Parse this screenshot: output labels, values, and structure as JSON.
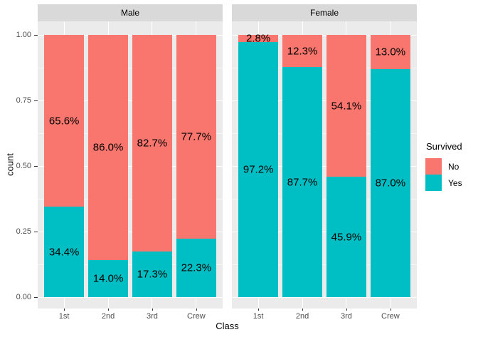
{
  "figure": {
    "y_axis": {
      "title": "count",
      "tick_labels": [
        "1.00",
        "0.75",
        "0.50",
        "0.25",
        "0.00"
      ],
      "tick_values": [
        1.0,
        0.75,
        0.5,
        0.25,
        0.0
      ]
    },
    "x_axis": {
      "title": "Class",
      "categories": [
        "1st",
        "2nd",
        "3rd",
        "Crew"
      ]
    },
    "legend": {
      "title": "Survived",
      "items": [
        {
          "label": "No",
          "color": "#F8766D"
        },
        {
          "label": "Yes",
          "color": "#00BFC4"
        }
      ]
    }
  },
  "chart_data": {
    "type": "bar",
    "stacking": "fill",
    "title": "",
    "xlabel": "Class",
    "ylabel": "count",
    "ylim": [
      0,
      1
    ],
    "grid": true,
    "legend_position": "right",
    "legend_title": "Survived",
    "categories": [
      "1st",
      "2nd",
      "3rd",
      "Crew"
    ],
    "facets": [
      {
        "label": "Male",
        "series": [
          {
            "name": "Yes",
            "color": "#00BFC4",
            "values": [
              0.344,
              0.14,
              0.173,
              0.223
            ],
            "labels": [
              "34.4%",
              "14.0%",
              "17.3%",
              "22.3%"
            ]
          },
          {
            "name": "No",
            "color": "#F8766D",
            "values": [
              0.656,
              0.86,
              0.827,
              0.777
            ],
            "labels": [
              "65.6%",
              "86.0%",
              "82.7%",
              "77.7%"
            ]
          }
        ]
      },
      {
        "label": "Female",
        "series": [
          {
            "name": "Yes",
            "color": "#00BFC4",
            "values": [
              0.972,
              0.877,
              0.459,
              0.87
            ],
            "labels": [
              "97.2%",
              "87.7%",
              "45.9%",
              "87.0%"
            ]
          },
          {
            "name": "No",
            "color": "#F8766D",
            "values": [
              0.028,
              0.123,
              0.541,
              0.13
            ],
            "labels": [
              "2.8%",
              "12.3%",
              "54.1%",
              "13.0%"
            ]
          }
        ]
      }
    ]
  },
  "colors": {
    "panel_background": "#EBEBEB",
    "strip_background": "#D9D9D9",
    "gridline": "#FFFFFF",
    "axis_text": "#4D4D4D",
    "axis_tick": "#333333",
    "label_text": "#000000",
    "bar_no": "#F8766D",
    "bar_yes": "#00BFC4"
  }
}
